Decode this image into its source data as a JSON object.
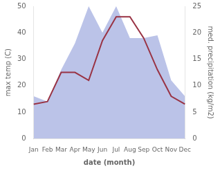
{
  "chart_data": {
    "type": "line",
    "xlabel": "date (month)",
    "ylabel": "max temp (C)",
    "y2label": "med. precipitation (kg/m2)",
    "categories": [
      "Jan",
      "Feb",
      "Mar",
      "Apr",
      "May",
      "Jun",
      "Jul",
      "Aug",
      "Sep",
      "Oct",
      "Nov",
      "Dec"
    ],
    "series": [
      {
        "type": "area",
        "color": "#bbc3e8",
        "values": [
          16,
          14,
          26,
          36,
          50,
          40,
          50,
          38,
          38,
          39,
          22,
          16
        ]
      },
      {
        "type": "line",
        "color": "#993344",
        "values": [
          13,
          14,
          25,
          25,
          22,
          37,
          46,
          46,
          38,
          26,
          16,
          13
        ]
      }
    ],
    "ylim": [
      0,
      50
    ],
    "yticks": [
      0,
      10,
      20,
      30,
      40,
      50
    ],
    "y2lim": [
      0,
      25
    ],
    "y2ticks": [
      0,
      5,
      10,
      15,
      20,
      25
    ],
    "grid": false
  }
}
